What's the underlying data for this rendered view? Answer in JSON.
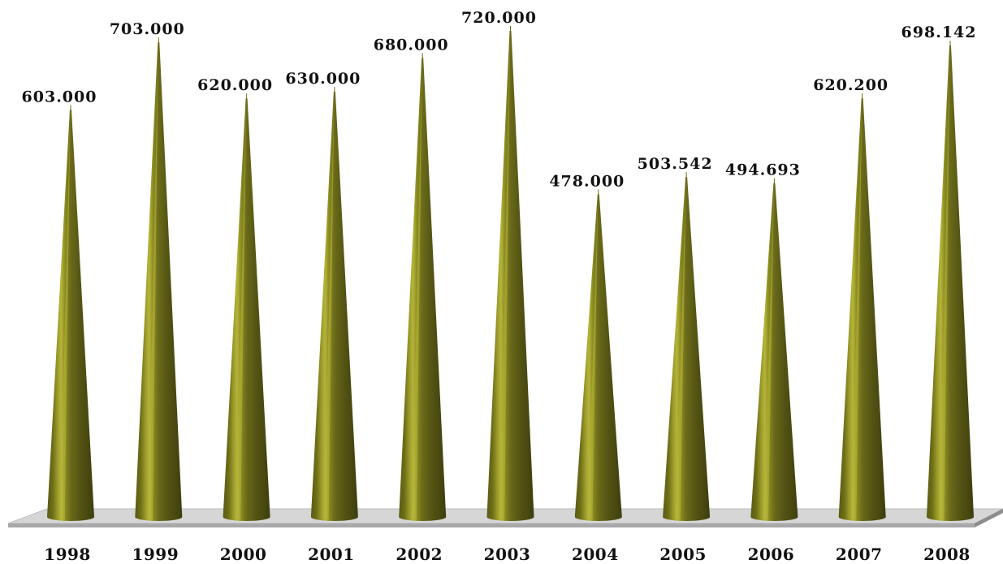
{
  "chart_data": {
    "type": "bar",
    "bar_shape": "cone",
    "categories": [
      "1998",
      "1999",
      "2000",
      "2001",
      "2002",
      "2003",
      "2004",
      "2005",
      "2006",
      "2007",
      "2008"
    ],
    "values": [
      603000,
      703000,
      620000,
      630000,
      680000,
      720000,
      478000,
      503542,
      494693,
      620200,
      698142
    ],
    "data_labels": [
      "603.000",
      "703.000",
      "620.000",
      "630.000",
      "680.000",
      "720.000",
      "478.000",
      "503.542",
      "494.693",
      "620.200",
      "698.142"
    ],
    "title": "",
    "xlabel": "",
    "ylabel": "",
    "ylim": [
      0,
      720000
    ],
    "grid": false,
    "legend": "none",
    "colors": {
      "cone_dark": "#4a4a12",
      "cone_mid": "#6b6b1a",
      "cone_light": "#9a9a2a",
      "cone_highlight": "#b8b83a",
      "floor_top": "#d4d4d4",
      "floor_edge": "#8c8c8c"
    }
  }
}
